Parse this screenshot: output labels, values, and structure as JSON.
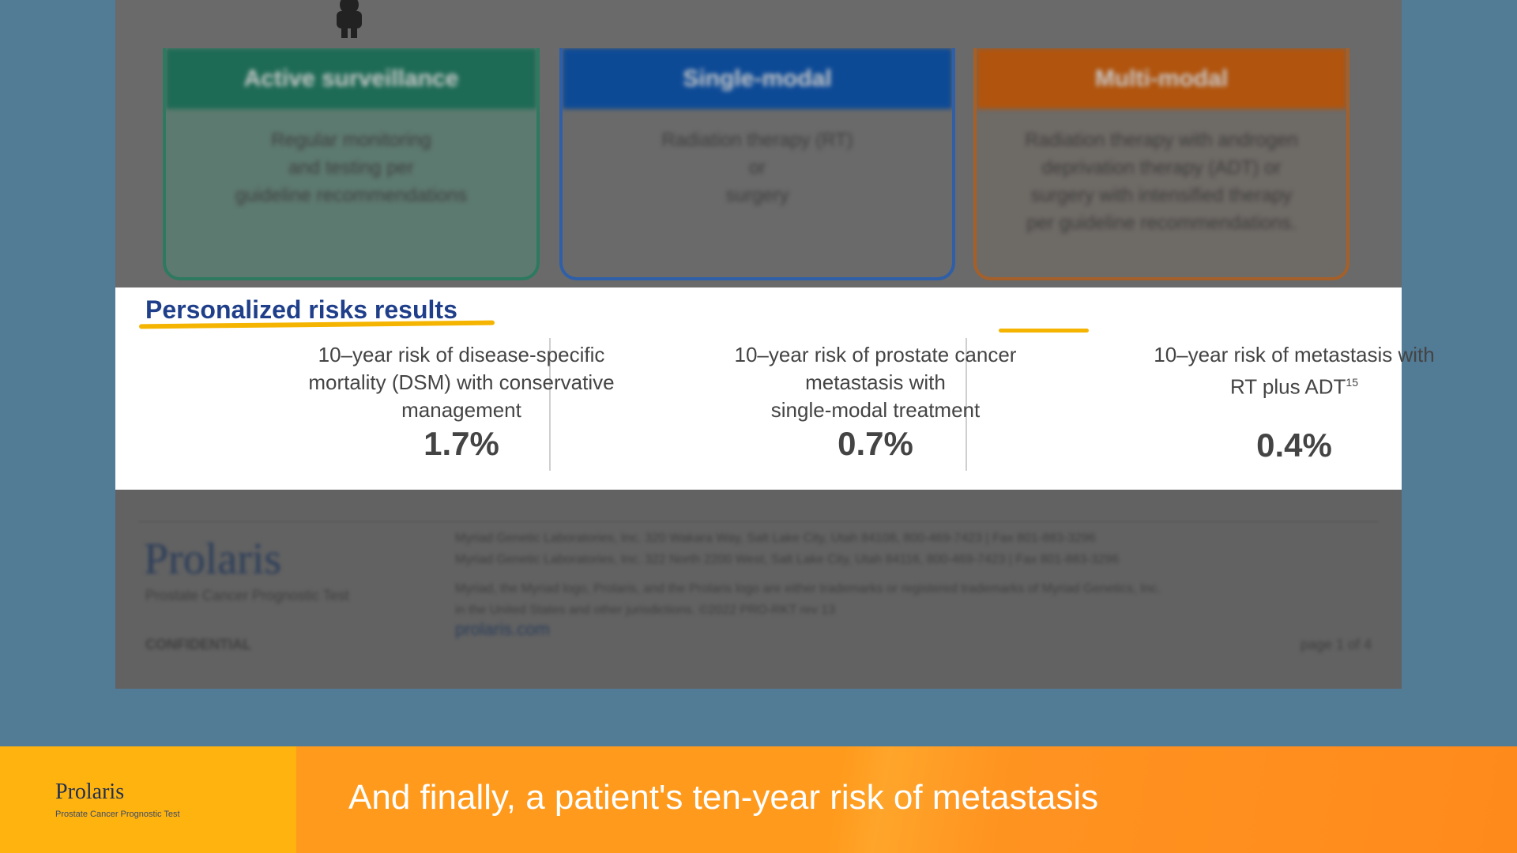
{
  "slide": {
    "cards": [
      {
        "title": "Active surveillance",
        "lines": [
          "Regular monitoring",
          "and testing per",
          "guideline recommendations"
        ]
      },
      {
        "title": "Single-modal",
        "lines": [
          "Radiation therapy (RT)",
          "or",
          "surgery"
        ]
      },
      {
        "title": "Multi-modal",
        "lines": [
          "Radiation therapy with androgen",
          "deprivation therapy (ADT) or",
          "surgery with intensified therapy",
          "per guideline recommendations."
        ]
      }
    ],
    "results": {
      "title": "Personalized risks results",
      "columns": [
        {
          "lines": [
            "10–year risk of disease-specific",
            "mortality (DSM) with conservative",
            "management"
          ],
          "value": "1.7%"
        },
        {
          "lines": [
            "10–year risk of prostate cancer",
            "metastasis with",
            "single-modal treatment"
          ],
          "value": "0.7%"
        },
        {
          "lines": [
            "10–year risk of metastasis with",
            "RT plus ADT"
          ],
          "superscript": "15",
          "value": "0.4%"
        }
      ]
    },
    "footer": {
      "brand": "Prolaris",
      "tagline": "Prostate Cancer Prognostic Test",
      "confidential": "CONFIDENTIAL",
      "address_lines": [
        "Myriad Genetic Laboratories, Inc. 320 Wakara Way, Salt Lake City, Utah 84108, 800-469-7423 | Fax 801-883-3296",
        "Myriad Genetic Laboratories, Inc. 322 North 2200 West, Salt Lake City, Utah 84116, 800-469-7423 | Fax 801-883-3296"
      ],
      "legal_lines": [
        "Myriad, the Myriad logo, Prolaris, and the Prolaris logo are either trademarks or registered trademarks of Myriad Genetics, Inc.",
        "in the United States and other jurisdictions. ©2022 PRO-RKT rev 13"
      ],
      "website": "prolaris.com",
      "page": "page 1 of 4"
    }
  },
  "caption": {
    "brand": "Prolaris",
    "tagline": "Prostate Cancer Prognostic Test",
    "text": "And finally, a patient's ten-year risk of metastasis"
  }
}
